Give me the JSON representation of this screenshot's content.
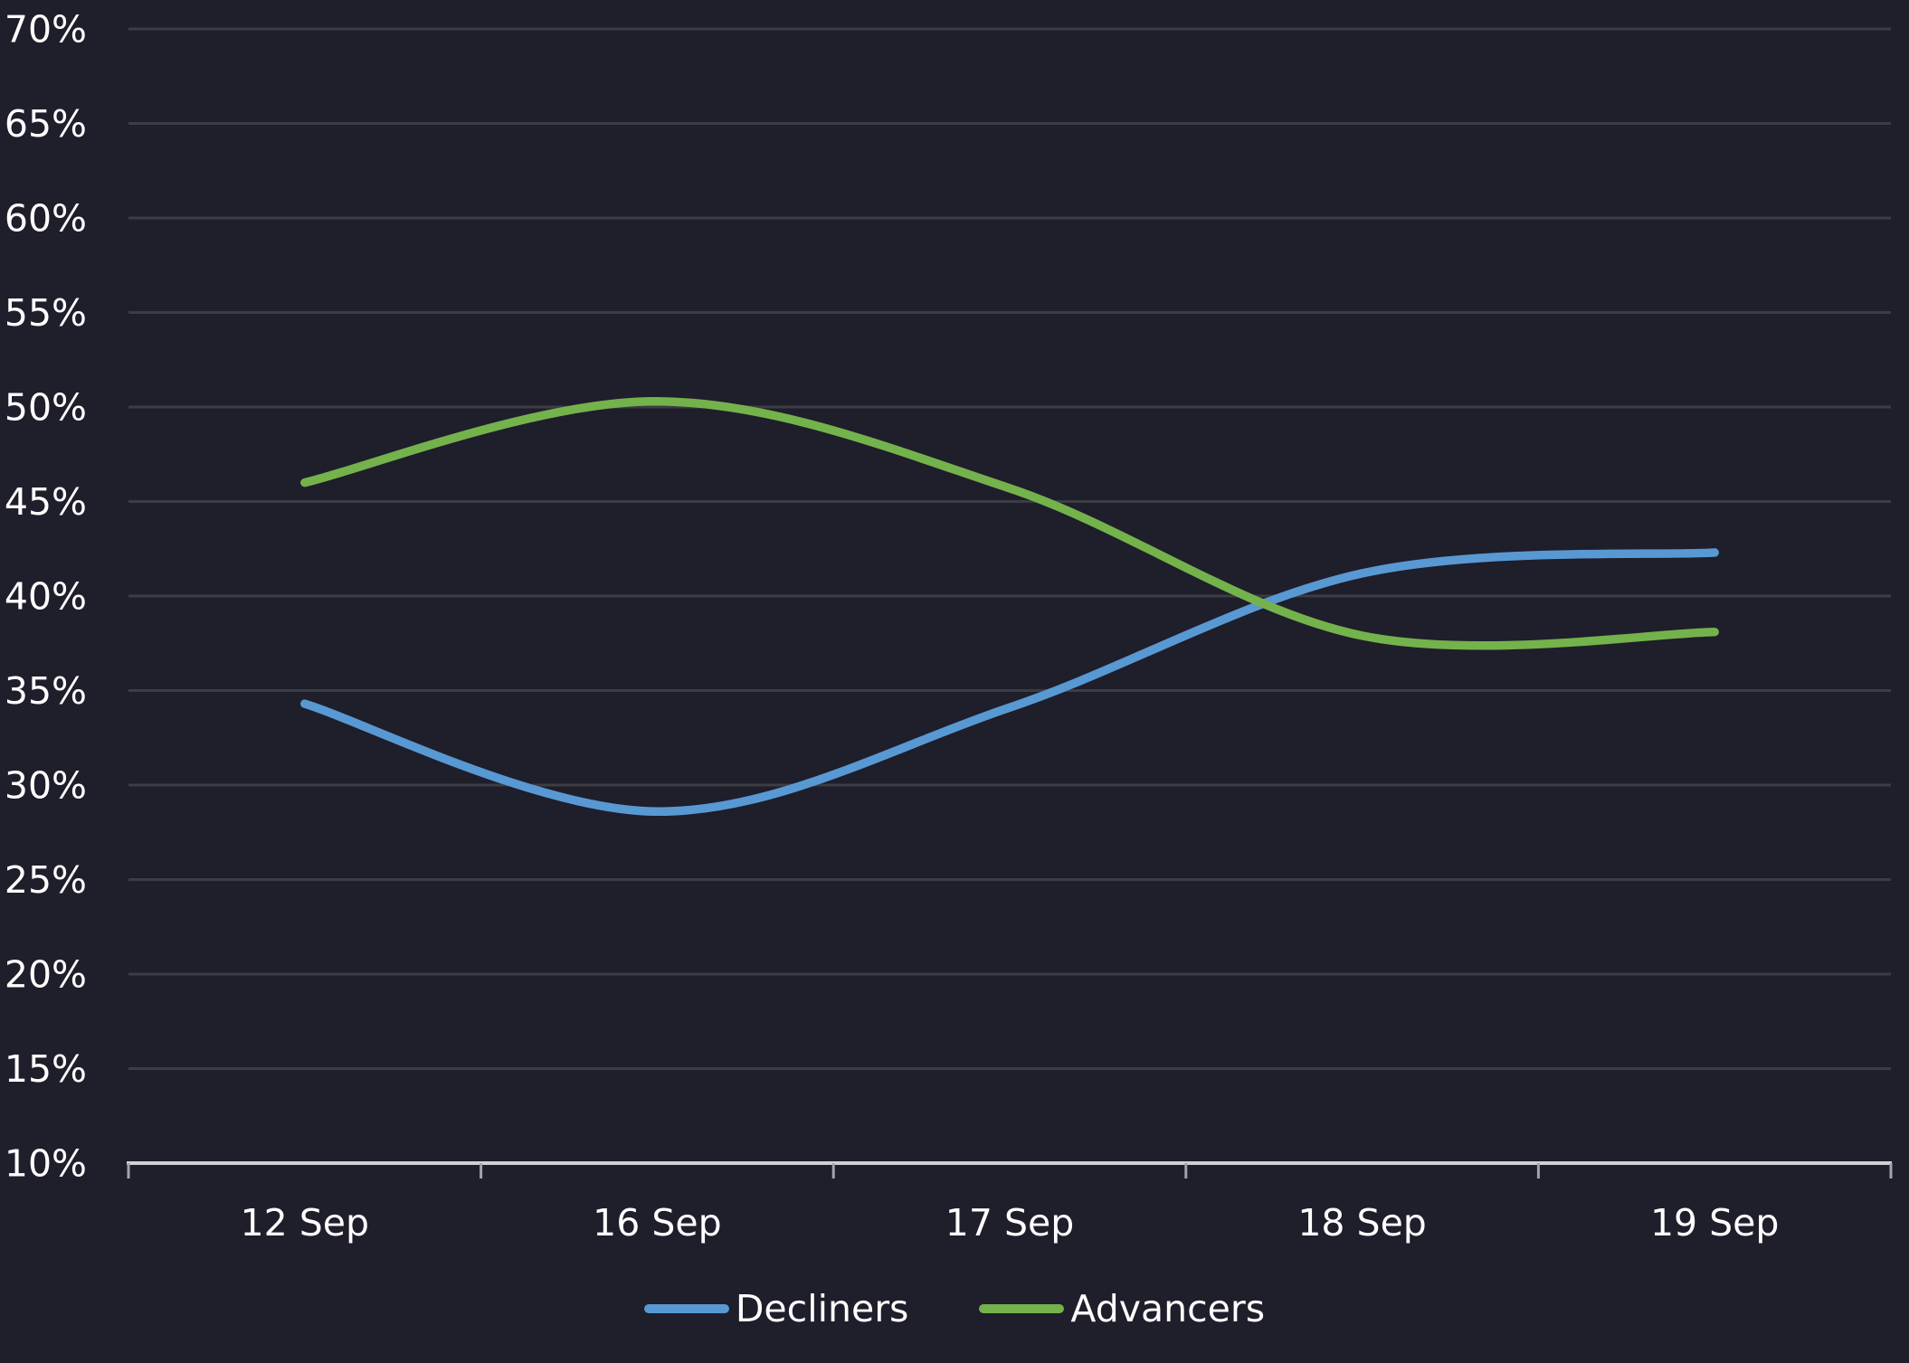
{
  "chart_data": {
    "type": "line",
    "smooth": true,
    "categories": [
      "12 Sep",
      "16 Sep",
      "17 Sep",
      "18 Sep",
      "19 Sep"
    ],
    "series": [
      {
        "name": "Decliners",
        "color": "#5899d3",
        "values": [
          34.3,
          28.6,
          34.1,
          41.2,
          42.3
        ]
      },
      {
        "name": "Advancers",
        "color": "#74b24c",
        "values": [
          46.0,
          50.3,
          45.7,
          37.9,
          38.1
        ]
      }
    ],
    "title": "",
    "xlabel": "",
    "ylabel": "",
    "ylim": [
      10,
      70
    ],
    "ytick_step": 5,
    "y_tick_labels": [
      "70%",
      "65%",
      "60%",
      "55%",
      "50%",
      "45%",
      "40%",
      "35%",
      "30%",
      "25%",
      "20%",
      "15%",
      "10%"
    ],
    "grid": "horizontal",
    "legend_position": "bottom"
  },
  "colors": {
    "background": "#1f1e2b",
    "gridline": "#3c3c43",
    "axis_line": "#d0d0d5",
    "tick_mark": "#a3a3ab",
    "label_text": "#ffffff"
  }
}
